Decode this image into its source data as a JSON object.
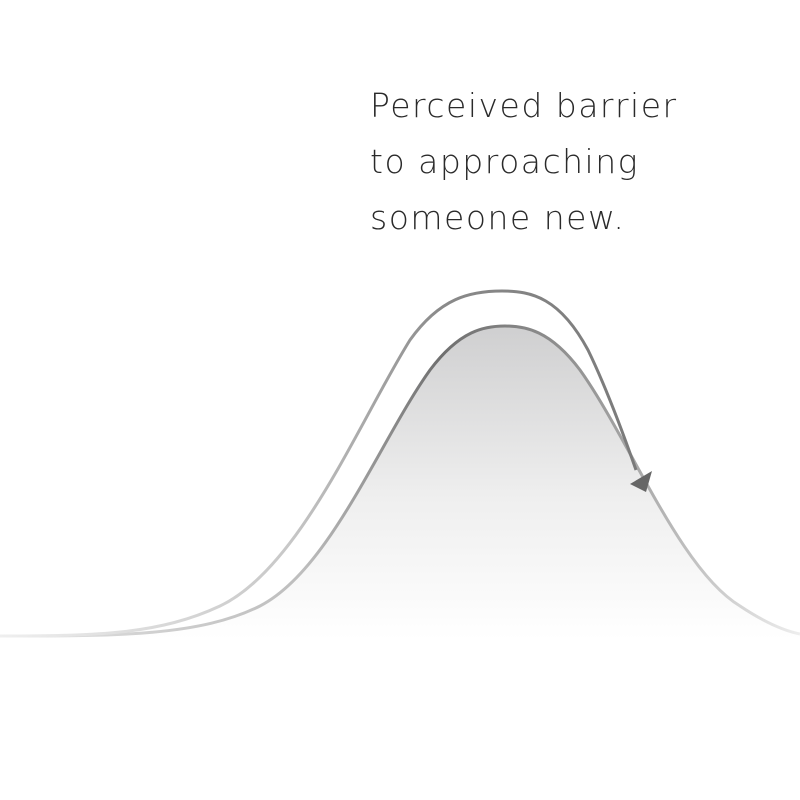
{
  "caption": {
    "lines": [
      "Perceived barrier",
      "to approaching",
      "someone new."
    ]
  },
  "colors": {
    "text": "#2a2a2a",
    "curve_stroke": "#777777",
    "arrow_stroke": "#8a8a8a",
    "arrowhead": "#666666",
    "fill_top": "#cfcfd0",
    "fill_bottom": "#ffffff"
  },
  "icons": {
    "arrow": "arrowhead-icon"
  }
}
